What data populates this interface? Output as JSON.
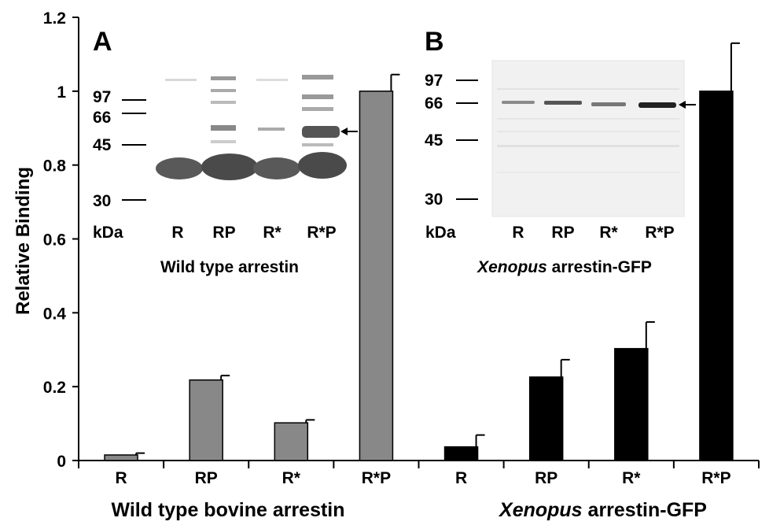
{
  "chart_data": {
    "type": "bar",
    "ylabel": "Relative Binding",
    "ylim": [
      0,
      1.2
    ],
    "yticks": [
      "0",
      "0.2",
      "0.4",
      "0.6",
      "0.8",
      "1",
      "1.2"
    ],
    "categories": [
      "R",
      "RP",
      "R*",
      "R*P",
      "R",
      "RP",
      "R*",
      "R*P"
    ],
    "groups": [
      {
        "label": "Wild type bovine arrestin",
        "color": "#888888",
        "categories": [
          "R",
          "RP",
          "R*",
          "R*P"
        ],
        "values": [
          0.015,
          0.218,
          0.102,
          1.0
        ],
        "errors": [
          0.005,
          0.012,
          0.008,
          0.045
        ]
      },
      {
        "label_italic": "Xenopus",
        "label_rest": " arrestin-GFP",
        "color": "#000000",
        "categories": [
          "R",
          "RP",
          "R*",
          "R*P"
        ],
        "values": [
          0.037,
          0.226,
          0.303,
          1.0
        ],
        "errors": [
          0.032,
          0.047,
          0.072,
          0.13
        ]
      }
    ]
  },
  "insets": [
    {
      "panel_letter": "A",
      "markers": [
        "97",
        "66",
        "45",
        "30"
      ],
      "unit": "kDa",
      "lanes": [
        "R",
        "RP",
        "R*",
        "R*P"
      ],
      "caption": "Wild type arrestin"
    },
    {
      "panel_letter": "B",
      "markers": [
        "97",
        "66",
        "45",
        "30"
      ],
      "unit": "kDa",
      "lanes": [
        "R",
        "RP",
        "R*",
        "R*P"
      ],
      "caption_italic": "Xenopus",
      "caption_rest": " arrestin-GFP"
    }
  ]
}
